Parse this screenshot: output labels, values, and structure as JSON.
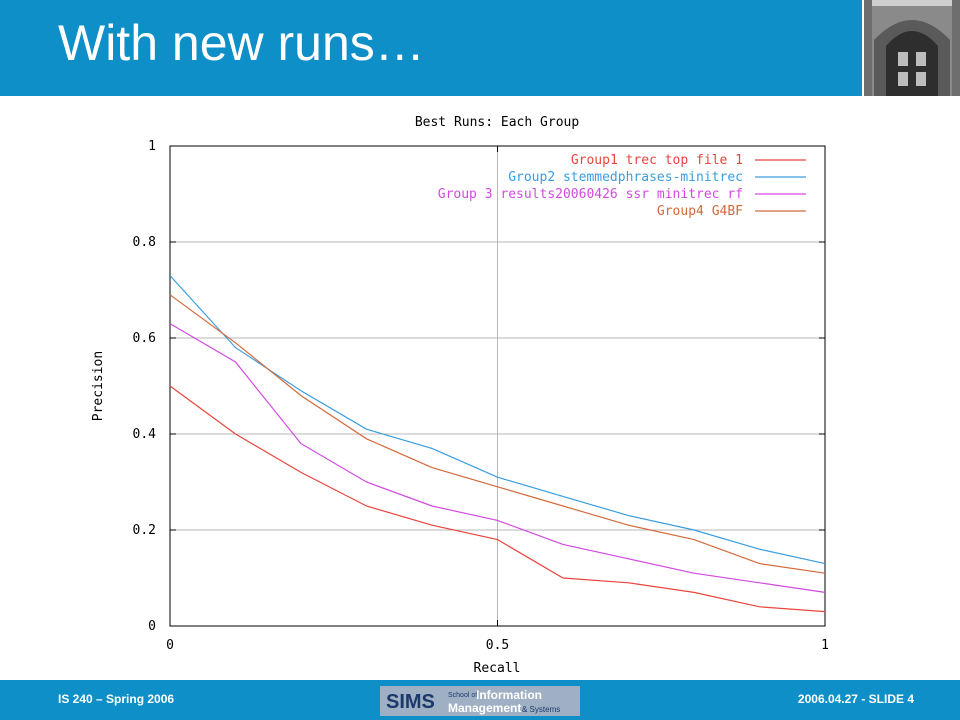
{
  "slide": {
    "title": "With new runs…",
    "footer_left": "IS 240 – Spring 2006",
    "footer_right": "2006.04.27 - SLIDE 4",
    "logo": {
      "sims": "SIMS",
      "line1_small": "School of",
      "line1_big": "Information",
      "line2_big": "Management",
      "line2_small": "& Systems"
    }
  },
  "colors": {
    "header": "#0e8fc8",
    "series1": "#e8453c",
    "series2": "#3a9de0",
    "series3": "#d24ae0",
    "series4": "#d26a3c"
  },
  "chart_data": {
    "type": "line",
    "title": "Best Runs: Each Group",
    "xlabel": "Recall",
    "ylabel": "Precision",
    "xlim": [
      0,
      1
    ],
    "ylim": [
      0,
      1
    ],
    "xticks": [
      "0",
      "0.5",
      "1"
    ],
    "yticks": [
      "0",
      "0.2",
      "0.4",
      "0.6",
      "0.8",
      "1"
    ],
    "legend_position": "top-right",
    "x": [
      0,
      0.1,
      0.2,
      0.3,
      0.4,
      0.5,
      0.6,
      0.7,
      0.8,
      0.9,
      1.0
    ],
    "series": [
      {
        "name": "Group1 trec top file 1",
        "color": "#e8453c",
        "values": [
          0.5,
          0.4,
          0.32,
          0.25,
          0.21,
          0.18,
          0.1,
          0.09,
          0.07,
          0.04,
          0.03
        ]
      },
      {
        "name": "Group2 stemmedphrases-minitrec",
        "color": "#3a9de0",
        "values": [
          0.73,
          0.58,
          0.49,
          0.41,
          0.37,
          0.31,
          0.27,
          0.23,
          0.2,
          0.16,
          0.13
        ]
      },
      {
        "name": "Group 3 results20060426 ssr minitrec rf",
        "color": "#d24ae0",
        "values": [
          0.63,
          0.55,
          0.38,
          0.3,
          0.25,
          0.22,
          0.17,
          0.14,
          0.11,
          0.09,
          0.07
        ]
      },
      {
        "name": "Group4 G4BF",
        "color": "#d26a3c",
        "values": [
          0.69,
          0.59,
          0.48,
          0.39,
          0.33,
          0.29,
          0.25,
          0.21,
          0.18,
          0.13,
          0.11
        ]
      }
    ]
  }
}
